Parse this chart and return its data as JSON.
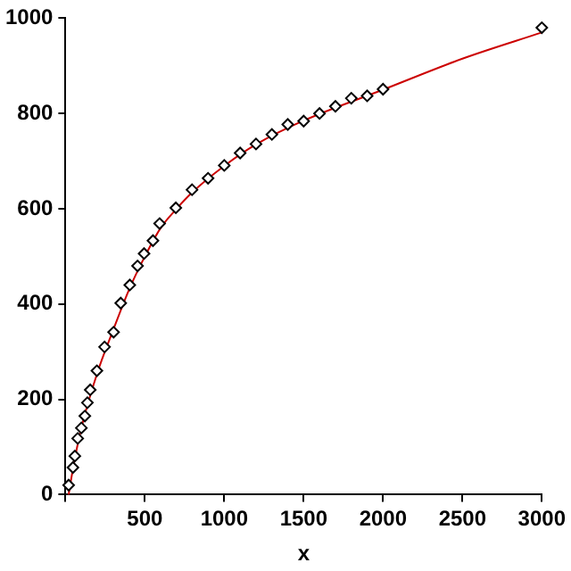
{
  "chart_data": {
    "type": "scatter",
    "xlabel": "x",
    "xlim": [
      0,
      3000
    ],
    "xticks": [
      {
        "value": 0,
        "label": null
      },
      500,
      1000,
      1500,
      2000,
      2500,
      3000
    ],
    "ylim": [
      0,
      1000
    ],
    "yticks": [
      0,
      200,
      400,
      600,
      800,
      1000
    ],
    "grid": false,
    "legend": false,
    "series": [
      {
        "color": "#000000",
        "marker": "diamond",
        "x": [
          20,
          47,
          59,
          77,
          100,
          122,
          138,
          156,
          198,
          246,
          303,
          348,
          405,
          454,
          495,
          551,
          593,
          695,
          797,
          898,
          1000,
          1100,
          1200,
          1300,
          1400,
          1500,
          1600,
          1700,
          1800,
          1900,
          2000,
          3000
        ],
        "values": [
          20,
          57,
          81,
          118,
          140,
          165,
          193,
          220,
          260,
          310,
          341,
          402,
          440,
          480,
          506,
          533,
          569,
          602,
          640,
          664,
          691,
          717,
          736,
          756,
          777,
          784,
          800,
          815,
          832,
          837,
          851,
          980
        ]
      },
      {
        "type": "line",
        "color": "#cc0000",
        "marker": "none",
        "x": [
          20,
          50,
          100,
          200,
          300,
          400,
          500,
          600,
          700,
          800,
          1000,
          1200,
          1500,
          2000,
          2500,
          3000
        ],
        "values": [
          0,
          60,
          140,
          255,
          345,
          430,
          500,
          560,
          600,
          635,
          690,
          735,
          785,
          850,
          915,
          970
        ]
      }
    ]
  }
}
